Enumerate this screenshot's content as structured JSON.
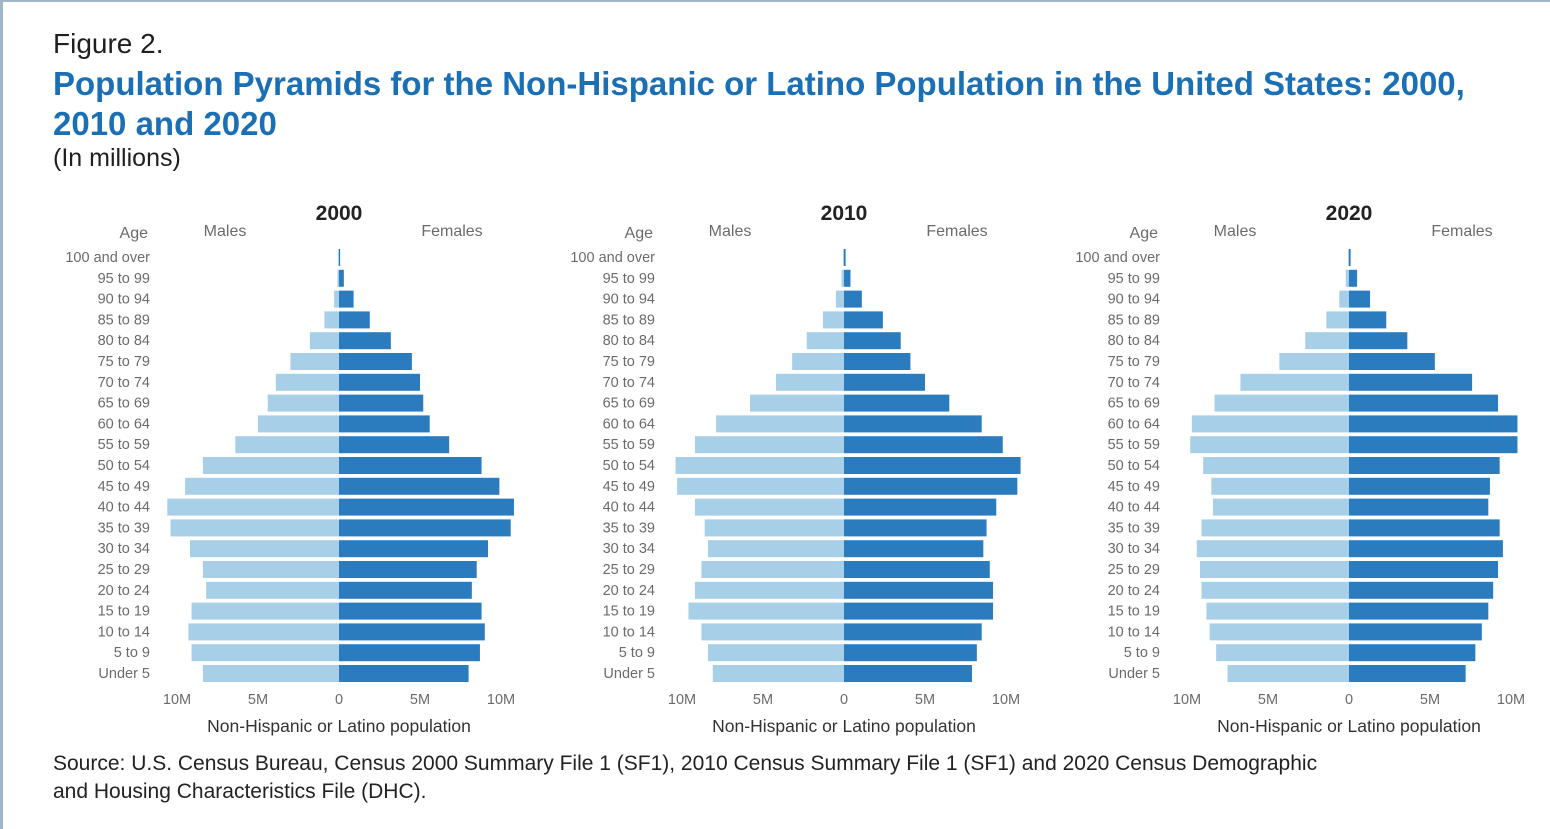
{
  "figure_label": "Figure 2.",
  "title": "Population Pyramids for the Non-Hispanic or Latino Population in the United States: 2000, 2010 and 2020",
  "subtitle": "(In millions)",
  "source": "Source: U.S. Census Bureau, Census 2000 Summary File 1 (SF1), 2010 Census Summary File 1 (SF1) and 2020 Census Demographic and Housing Characteristics File (DHC).",
  "colors": {
    "males": "#a8cfe8",
    "females": "#2b7cbf",
    "title": "#1a6fb5",
    "text": "#6b6b6b"
  },
  "chart_data": [
    {
      "type": "bar",
      "orientation": "horizontal-pyramid",
      "title": "2000",
      "age_label": "Age",
      "males_label": "Males",
      "females_label": "Females",
      "xlabel": "Non-Hispanic or Latino population",
      "xlim": [
        -10,
        10
      ],
      "xticks": [
        "10M",
        "5M",
        "0",
        "5M",
        "10M"
      ],
      "categories": [
        "100 and over",
        "95 to 99",
        "90 to 94",
        "85 to 89",
        "80 to 84",
        "75 to 79",
        "70 to 74",
        "65 to 69",
        "60 to 64",
        "55 to 59",
        "50 to 54",
        "45 to 49",
        "40 to 44",
        "35 to 39",
        "30 to 34",
        "25 to 29",
        "20 to 24",
        "15 to 19",
        "10 to 14",
        "5 to 9",
        "Under 5"
      ],
      "series": [
        {
          "name": "Males",
          "values": [
            0.02,
            0.1,
            0.3,
            0.9,
            1.8,
            3.0,
            3.9,
            4.4,
            5.0,
            6.4,
            8.4,
            9.5,
            10.6,
            10.4,
            9.2,
            8.4,
            8.2,
            9.1,
            9.3,
            9.1,
            8.4
          ]
        },
        {
          "name": "Females",
          "values": [
            0.07,
            0.3,
            0.9,
            1.9,
            3.2,
            4.5,
            5.0,
            5.2,
            5.6,
            6.8,
            8.8,
            9.9,
            10.8,
            10.6,
            9.2,
            8.5,
            8.2,
            8.8,
            9.0,
            8.7,
            8.0
          ]
        }
      ]
    },
    {
      "type": "bar",
      "orientation": "horizontal-pyramid",
      "title": "2010",
      "age_label": "Age",
      "males_label": "Males",
      "females_label": "Females",
      "xlabel": "Non-Hispanic or Latino population",
      "xlim": [
        -10,
        10
      ],
      "xticks": [
        "10M",
        "5M",
        "0",
        "5M",
        "10M"
      ],
      "categories": [
        "100 and over",
        "95 to 99",
        "90 to 94",
        "85 to 89",
        "80 to 84",
        "75 to 79",
        "70 to 74",
        "65 to 69",
        "60 to 64",
        "55 to 59",
        "50 to 54",
        "45 to 49",
        "40 to 44",
        "35 to 39",
        "30 to 34",
        "25 to 29",
        "20 to 24",
        "15 to 19",
        "10 to 14",
        "5 to 9",
        "Under 5"
      ],
      "series": [
        {
          "name": "Males",
          "values": [
            0.03,
            0.15,
            0.5,
            1.3,
            2.3,
            3.2,
            4.2,
            5.8,
            7.9,
            9.2,
            10.4,
            10.3,
            9.2,
            8.6,
            8.4,
            8.8,
            9.2,
            9.6,
            8.8,
            8.4,
            8.1
          ]
        },
        {
          "name": "Females",
          "values": [
            0.1,
            0.4,
            1.1,
            2.4,
            3.5,
            4.1,
            5.0,
            6.5,
            8.5,
            9.8,
            10.9,
            10.7,
            9.4,
            8.8,
            8.6,
            9.0,
            9.2,
            9.2,
            8.5,
            8.2,
            7.9
          ]
        }
      ]
    },
    {
      "type": "bar",
      "orientation": "horizontal-pyramid",
      "title": "2020",
      "age_label": "Age",
      "males_label": "Males",
      "females_label": "Females",
      "xlabel": "Non-Hispanic or Latino population",
      "xlim": [
        -10,
        10
      ],
      "xticks": [
        "10M",
        "5M",
        "0",
        "5M",
        "10M"
      ],
      "categories": [
        "100 and over",
        "95 to 99",
        "90 to 94",
        "85 to 89",
        "80 to 84",
        "75 to 79",
        "70 to 74",
        "65 to 69",
        "60 to 64",
        "55 to 59",
        "50 to 54",
        "45 to 49",
        "40 to 44",
        "35 to 39",
        "30 to 34",
        "25 to 29",
        "20 to 24",
        "15 to 19",
        "10 to 14",
        "5 to 9",
        "Under 5"
      ],
      "series": [
        {
          "name": "Males",
          "values": [
            0.05,
            0.2,
            0.6,
            1.4,
            2.7,
            4.3,
            6.7,
            8.3,
            9.7,
            9.8,
            9.0,
            8.5,
            8.4,
            9.1,
            9.4,
            9.2,
            9.1,
            8.8,
            8.6,
            8.2,
            7.5
          ]
        },
        {
          "name": "Females",
          "values": [
            0.1,
            0.5,
            1.3,
            2.3,
            3.6,
            5.3,
            7.6,
            9.2,
            10.4,
            10.4,
            9.3,
            8.7,
            8.6,
            9.3,
            9.5,
            9.2,
            8.9,
            8.6,
            8.2,
            7.8,
            7.2
          ]
        }
      ]
    }
  ]
}
